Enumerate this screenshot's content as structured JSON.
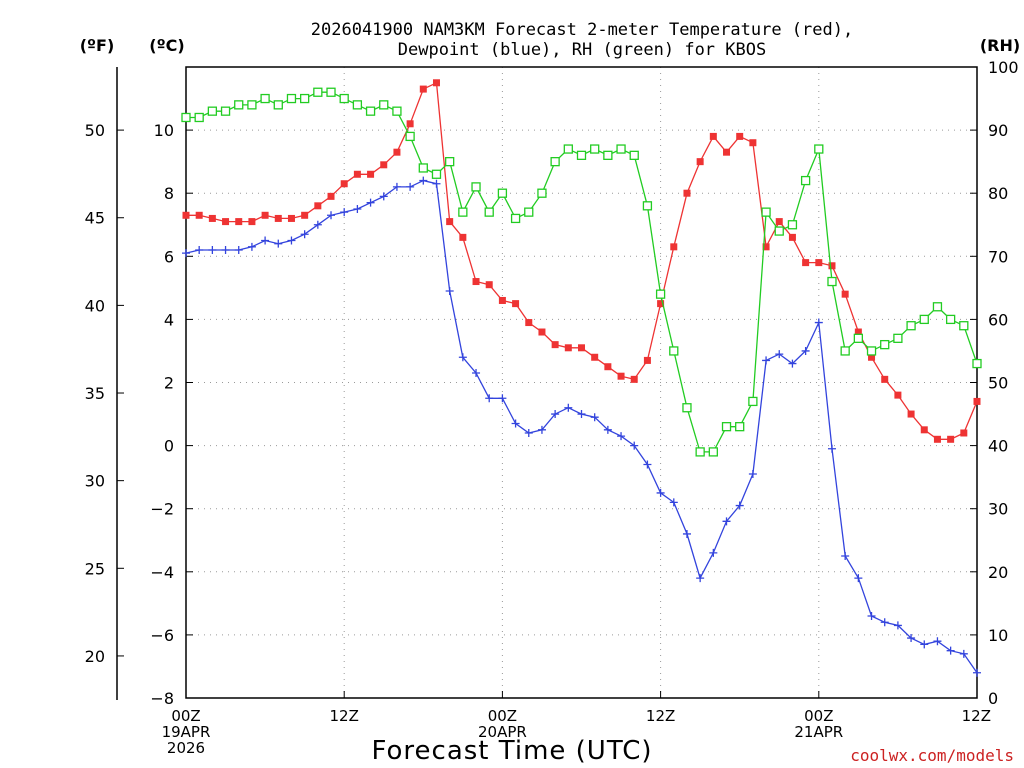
{
  "chart_data": {
    "type": "line",
    "title_line1": "2026041900 NAM3KM Forecast 2-meter Temperature (red),",
    "title_line2": "Dewpoint (blue), RH (green) for KBOS",
    "xlabel": "Forecast Time (UTC)",
    "credit": "coolwx.com/models",
    "units": {
      "fahrenheit": "(ºF)",
      "celsius": "(ºC)",
      "rh": "(RH)"
    },
    "x_range_hours": [
      0,
      60
    ],
    "x_ticks": [
      {
        "hour": 0,
        "lines": [
          "00Z",
          "19APR",
          "2026"
        ]
      },
      {
        "hour": 12,
        "lines": [
          "12Z"
        ]
      },
      {
        "hour": 24,
        "lines": [
          "00Z",
          "20APR"
        ]
      },
      {
        "hour": 36,
        "lines": [
          "12Z"
        ]
      },
      {
        "hour": 48,
        "lines": [
          "00Z",
          "21APR"
        ]
      },
      {
        "hour": 60,
        "lines": [
          "12Z"
        ]
      }
    ],
    "y_celsius": {
      "range": [
        -8,
        12
      ],
      "ticks": [
        10,
        8,
        6,
        4,
        2,
        0,
        -2,
        -4,
        -6,
        -8
      ],
      "tick_labels": [
        "10",
        "8",
        "6",
        "4",
        "2",
        "0",
        "−2",
        "−4",
        "−6",
        "−8"
      ]
    },
    "y_fahrenheit": {
      "ticks": [
        50,
        45,
        40,
        35,
        30,
        25,
        20
      ],
      "tick_labels": [
        "50",
        "45",
        "40",
        "35",
        "30",
        "25",
        "20"
      ]
    },
    "y_rh": {
      "range": [
        0,
        100
      ],
      "ticks": [
        100,
        90,
        80,
        70,
        60,
        50,
        40,
        30,
        20,
        10,
        0
      ],
      "tick_labels": [
        "100",
        "90",
        "80",
        "70",
        "60",
        "50",
        "40",
        "30",
        "20",
        "10",
        "0"
      ]
    },
    "colors": {
      "temperature": "#ee3333",
      "dewpoint": "#3344dd",
      "rh": "#22cc22"
    },
    "hours": [
      0,
      1,
      2,
      3,
      4,
      5,
      6,
      7,
      8,
      9,
      10,
      11,
      12,
      13,
      14,
      15,
      16,
      17,
      18,
      19,
      20,
      21,
      22,
      23,
      24,
      25,
      26,
      27,
      28,
      29,
      30,
      31,
      32,
      33,
      34,
      35,
      36,
      37,
      38,
      39,
      40,
      41,
      42,
      43,
      44,
      45,
      46,
      47,
      48,
      49,
      50,
      51,
      52,
      53,
      54,
      55,
      56,
      57,
      58,
      59,
      60
    ],
    "series": [
      {
        "name": "Temperature",
        "unit": "°C",
        "marker": "filled-square",
        "values": [
          7.3,
          7.3,
          7.2,
          7.1,
          7.1,
          7.1,
          7.3,
          7.2,
          7.2,
          7.3,
          7.6,
          7.9,
          8.3,
          8.6,
          8.6,
          8.9,
          9.3,
          10.2,
          11.3,
          11.5,
          7.1,
          6.6,
          5.2,
          5.1,
          4.6,
          4.5,
          3.9,
          3.6,
          3.2,
          3.1,
          3.1,
          2.8,
          2.5,
          2.2,
          2.1,
          2.7,
          4.5,
          6.3,
          8.0,
          9.0,
          9.8,
          9.3,
          9.8,
          9.6,
          6.3,
          7.1,
          6.6,
          5.8,
          5.8,
          5.7,
          4.8,
          3.6,
          2.8,
          2.1,
          1.6,
          1.0,
          0.5,
          0.2,
          0.2,
          0.4,
          1.4
        ]
      },
      {
        "name": "Dewpoint",
        "unit": "°C",
        "marker": "plus",
        "values": [
          6.1,
          6.2,
          6.2,
          6.2,
          6.2,
          6.3,
          6.5,
          6.4,
          6.5,
          6.7,
          7.0,
          7.3,
          7.4,
          7.5,
          7.7,
          7.9,
          8.2,
          8.2,
          8.4,
          8.3,
          4.9,
          2.8,
          2.3,
          1.5,
          1.5,
          0.7,
          0.4,
          0.5,
          1.0,
          1.2,
          1.0,
          0.9,
          0.5,
          0.3,
          0.0,
          -0.6,
          -1.5,
          -1.8,
          -2.8,
          -4.2,
          -3.4,
          -2.4,
          -1.9,
          -0.9,
          2.7,
          2.9,
          2.6,
          3.0,
          3.9,
          -0.1,
          -3.5,
          -4.2,
          -5.4,
          -5.6,
          -5.7,
          -6.1,
          -6.3,
          -6.2,
          -6.5,
          -6.6,
          -7.2
        ]
      },
      {
        "name": "RH",
        "unit": "%",
        "marker": "open-square",
        "values": [
          92,
          92,
          93,
          93,
          94,
          94,
          95,
          94,
          95,
          95,
          96,
          96,
          95,
          94,
          93,
          94,
          93,
          89,
          84,
          83,
          85,
          77,
          81,
          77,
          80,
          76,
          77,
          80,
          85,
          87,
          86,
          87,
          86,
          87,
          86,
          78,
          64,
          55,
          46,
          39,
          39,
          43,
          43,
          47,
          77,
          74,
          75,
          82,
          87,
          66,
          55,
          57,
          55,
          56,
          57,
          59,
          60,
          62,
          60,
          59,
          53
        ]
      }
    ]
  }
}
